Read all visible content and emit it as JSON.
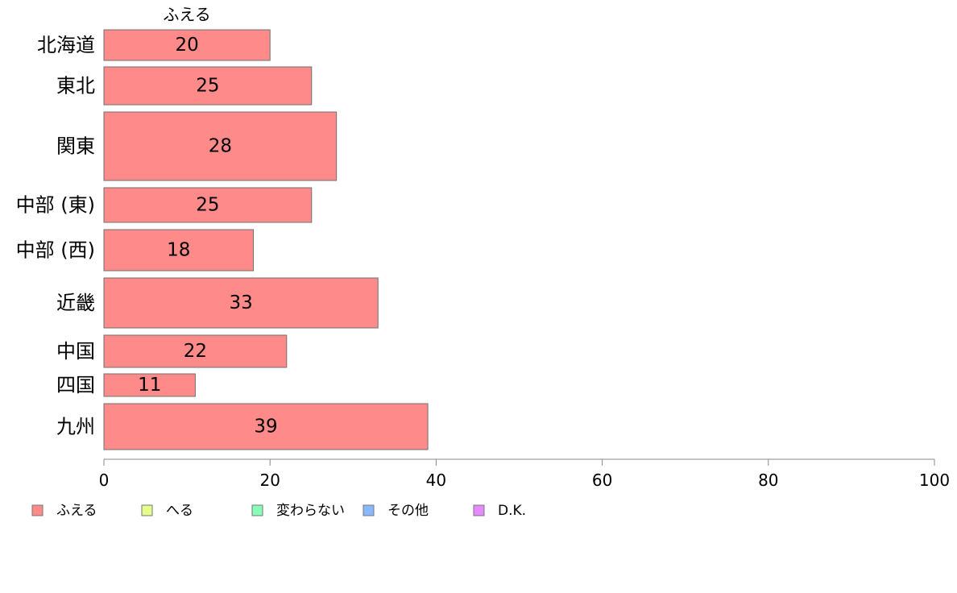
{
  "chart_data": {
    "type": "bar",
    "orientation": "horizontal",
    "stacked": true,
    "categories": [
      "北海道",
      "東北",
      "関東",
      "中部 (東)",
      "中部 (西)",
      "近畿",
      "中国",
      "四国",
      "九州"
    ],
    "series": [
      {
        "name": "ふえる",
        "color": "#ff8a8a",
        "values": [
          20,
          25,
          28,
          25,
          18,
          33,
          22,
          11,
          39
        ]
      },
      {
        "name": "へる",
        "color": "#e6ff8a"
      },
      {
        "name": "変わらない",
        "color": "#8affb8"
      },
      {
        "name": "その他",
        "color": "#8ab8ff"
      },
      {
        "name": "D.K.",
        "color": "#e68aff"
      }
    ],
    "series_heading": "ふえる",
    "xlim": [
      0,
      100
    ],
    "xticks": [
      0,
      20,
      40,
      60,
      80,
      100
    ],
    "legend_position": "bottom-left",
    "grid": false
  }
}
